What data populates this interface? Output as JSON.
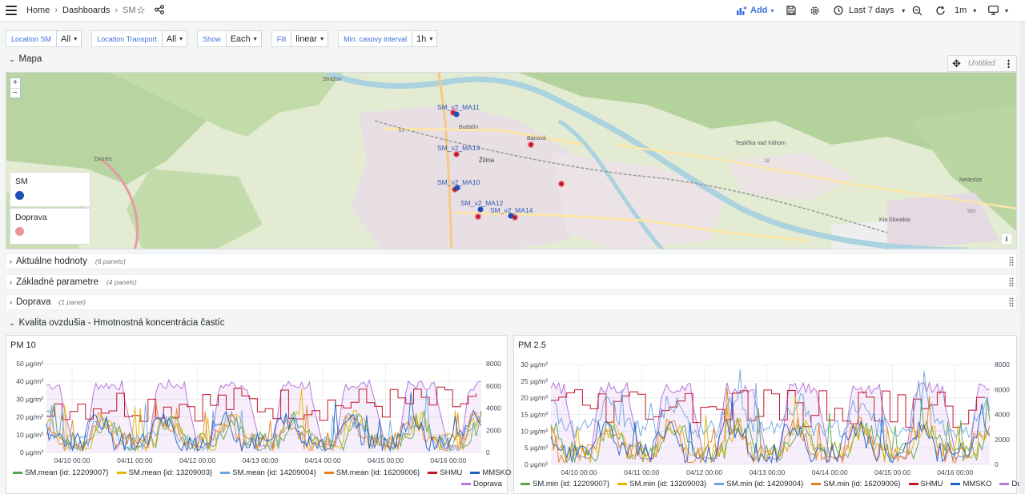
{
  "nav": {
    "breadcrumb": [
      "Home",
      "Dashboards",
      "SM"
    ],
    "add_label": "Add",
    "time_range": "Last 7 days",
    "refresh": "1m"
  },
  "variables": [
    {
      "label": "Location SM",
      "value": "All"
    },
    {
      "label": "Location Transport",
      "value": "All"
    },
    {
      "label": "Show",
      "value": "Each"
    },
    {
      "label": "Fill",
      "value": "linear"
    },
    {
      "label": "Min. casovy interval",
      "value": "1h"
    }
  ],
  "rows": {
    "mapa": "Mapa",
    "aktualne": {
      "title": "Aktuálne hodnoty",
      "count": "(6 panels)"
    },
    "zakladne": {
      "title": "Základné parametre",
      "count": "(4 panels)"
    },
    "doprava": {
      "title": "Doprava",
      "count": "(1 panel)"
    },
    "kvalita": "Kvalita ovzdušia - Hmotnostná koncentrácia častíc"
  },
  "map_panel": {
    "title": "Untitled",
    "legend": [
      {
        "name": "SM",
        "color": "#1f4fb4"
      },
      {
        "name": "Doprava",
        "color": "#e8959d"
      }
    ],
    "labels": {
      "towns": [
        "Strážov",
        "Žilina",
        "Bánová",
        "Teplička nad Váhom",
        "Kia Slovakia",
        "Nededza",
        "Dvorec",
        "Budatín"
      ],
      "roads": [
        "61",
        "583",
        "18"
      ],
      "sensors": [
        "SM_v2_MA11",
        "SM_v2_MA13",
        "SM_v2_MA10",
        "SM_v2_MA12",
        "SM_v2_MA14"
      ]
    },
    "zoom_in": "+",
    "zoom_out": "−",
    "info": "i"
  },
  "chart_data": [
    {
      "title": "PM 10",
      "type": "line",
      "yaxis_left": {
        "ticks": [
          "0 μg/m³",
          "10 μg/m³",
          "20 μg/m³",
          "30 μg/m³",
          "40 μg/m³",
          "50 μg/m³"
        ],
        "range": [
          0,
          50
        ]
      },
      "yaxis_right": {
        "ticks": [
          "0",
          "2000",
          "4000",
          "6000",
          "8000"
        ],
        "range": [
          0,
          8000
        ]
      },
      "x_ticks": [
        "04/10 00:00",
        "04/11 00:00",
        "04/12 00:00",
        "04/13 00:00",
        "04/14 00:00",
        "04/15 00:00",
        "04/16 00:00"
      ],
      "series": [
        {
          "name": "SM.mean {id: 12209007}",
          "color": "#56a64b"
        },
        {
          "name": "SM.mean {id: 13209003}",
          "color": "#e0b400"
        },
        {
          "name": "SM.mean {id: 14209004}",
          "color": "#6ba5e0"
        },
        {
          "name": "SM.mean {id: 16209006}",
          "color": "#e67e22"
        },
        {
          "name": "SHMU",
          "color": "#c4162a"
        },
        {
          "name": "MMSKO",
          "color": "#1f60c4"
        },
        {
          "name": "Doprava",
          "color": "#b877d9"
        }
      ]
    },
    {
      "title": "PM 2.5",
      "type": "line",
      "yaxis_left": {
        "ticks": [
          "0 μg/m³",
          "5 μg/m³",
          "10 μg/m³",
          "15 μg/m³",
          "20 μg/m³",
          "25 μg/m³",
          "30 μg/m³"
        ],
        "range": [
          0,
          30
        ]
      },
      "yaxis_right": {
        "ticks": [
          "0",
          "2000",
          "4000",
          "6000",
          "8000"
        ],
        "range": [
          0,
          8000
        ]
      },
      "x_ticks": [
        "04/10 00:00",
        "04/11 00:00",
        "04/12 00:00",
        "04/13 00:00",
        "04/14 00:00",
        "04/15 00:00",
        "04/16 00:00"
      ],
      "series": [
        {
          "name": "SM.min {id: 12209007}",
          "color": "#56a64b"
        },
        {
          "name": "SM.min {id: 13209003}",
          "color": "#e0b400"
        },
        {
          "name": "SM.min {id: 14209004}",
          "color": "#6ba5e0"
        },
        {
          "name": "SM.min {id: 16209006}",
          "color": "#e67e22"
        },
        {
          "name": "SHMU",
          "color": "#c4162a"
        },
        {
          "name": "MMSKO",
          "color": "#1f60c4"
        },
        {
          "name": "Doprava",
          "color": "#b877d9"
        }
      ]
    }
  ]
}
